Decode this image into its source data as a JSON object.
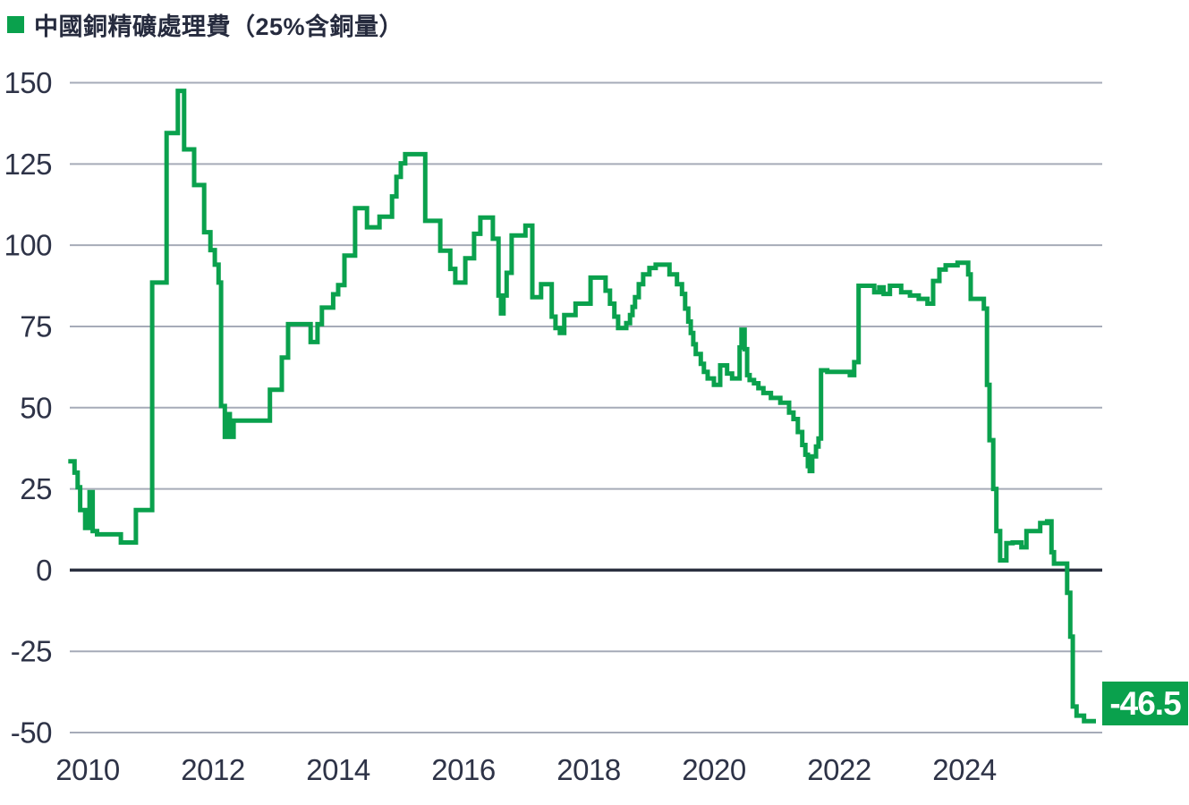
{
  "header": {
    "title": "中國銅精礦處理費（25%含銅量）"
  },
  "colors": {
    "series_green": "#0aa14d",
    "badge_bg": "#0aa14d",
    "badge_text": "#ffffff",
    "grid": "#a6abb8",
    "zero_line": "#2b3040",
    "label_text": "#2e3347",
    "background": "#ffffff"
  },
  "badge": {
    "label": "-46.5"
  },
  "chart_data": {
    "type": "line",
    "step": true,
    "title": "中國銅精礦處理費（25%含銅量）",
    "xlabel": "",
    "ylabel": "",
    "ylim": [
      -50,
      150
    ],
    "xlim": [
      2009.55,
      2026.3
    ],
    "grid": "horizontal",
    "legend_position": "top-left",
    "y_ticks": [
      150,
      125,
      100,
      75,
      50,
      25,
      0,
      -25,
      -50
    ],
    "x_ticks": [
      2010,
      2012,
      2014,
      2016,
      2018,
      2020,
      2022,
      2024
    ],
    "end_annotation": {
      "label": "-46.5",
      "value": -46.5
    },
    "series": [
      {
        "name": "中國銅精礦處理費（25%含銅量）",
        "color": "#0aa14d",
        "points": [
          [
            2009.69,
            33.5
          ],
          [
            2009.79,
            30
          ],
          [
            2009.84,
            25.5
          ],
          [
            2009.88,
            18.5
          ],
          [
            2009.96,
            13
          ],
          [
            2010.03,
            24
          ],
          [
            2010.08,
            12
          ],
          [
            2010.15,
            11
          ],
          [
            2010.53,
            8.5
          ],
          [
            2010.77,
            18.5
          ],
          [
            2011.03,
            88.5
          ],
          [
            2011.26,
            134.5
          ],
          [
            2011.44,
            147.5
          ],
          [
            2011.54,
            129.5
          ],
          [
            2011.7,
            118.5
          ],
          [
            2011.86,
            104
          ],
          [
            2011.96,
            98.5
          ],
          [
            2012.03,
            94
          ],
          [
            2012.09,
            88.5
          ],
          [
            2012.13,
            50.5
          ],
          [
            2012.19,
            41
          ],
          [
            2012.23,
            48
          ],
          [
            2012.27,
            41
          ],
          [
            2012.33,
            46
          ],
          [
            2012.91,
            55.5
          ],
          [
            2013.1,
            65.4
          ],
          [
            2013.2,
            75.7
          ],
          [
            2013.56,
            70.2
          ],
          [
            2013.67,
            75.7
          ],
          [
            2013.74,
            80.8
          ],
          [
            2013.92,
            84.9
          ],
          [
            2014.0,
            87.7
          ],
          [
            2014.1,
            96.8
          ],
          [
            2014.27,
            111.4
          ],
          [
            2014.46,
            105.5
          ],
          [
            2014.66,
            108.8
          ],
          [
            2014.86,
            115
          ],
          [
            2014.93,
            121
          ],
          [
            2015.0,
            125.2
          ],
          [
            2015.07,
            128
          ],
          [
            2015.39,
            107.5
          ],
          [
            2015.63,
            98.3
          ],
          [
            2015.79,
            92.7
          ],
          [
            2015.87,
            88.5
          ],
          [
            2016.03,
            96
          ],
          [
            2016.17,
            103.5
          ],
          [
            2016.27,
            108.5
          ],
          [
            2016.47,
            102
          ],
          [
            2016.56,
            84.5
          ],
          [
            2016.6,
            79
          ],
          [
            2016.64,
            84.5
          ],
          [
            2016.69,
            91.5
          ],
          [
            2016.77,
            103
          ],
          [
            2016.99,
            106
          ],
          [
            2017.1,
            84
          ],
          [
            2017.24,
            88
          ],
          [
            2017.41,
            78
          ],
          [
            2017.47,
            74.5
          ],
          [
            2017.54,
            73
          ],
          [
            2017.61,
            78.5
          ],
          [
            2017.79,
            82
          ],
          [
            2018.03,
            90
          ],
          [
            2018.27,
            86
          ],
          [
            2018.34,
            82
          ],
          [
            2018.41,
            78
          ],
          [
            2018.47,
            74.5
          ],
          [
            2018.6,
            76
          ],
          [
            2018.66,
            78.5
          ],
          [
            2018.7,
            81
          ],
          [
            2018.74,
            84
          ],
          [
            2018.8,
            88
          ],
          [
            2018.87,
            91
          ],
          [
            2018.97,
            93
          ],
          [
            2019.07,
            94
          ],
          [
            2019.29,
            91
          ],
          [
            2019.41,
            88
          ],
          [
            2019.49,
            85
          ],
          [
            2019.54,
            80.5
          ],
          [
            2019.59,
            76.5
          ],
          [
            2019.63,
            73
          ],
          [
            2019.67,
            69.5
          ],
          [
            2019.71,
            66.5
          ],
          [
            2019.79,
            63.5
          ],
          [
            2019.84,
            61
          ],
          [
            2019.9,
            59
          ],
          [
            2020.0,
            57
          ],
          [
            2020.1,
            63
          ],
          [
            2020.21,
            60.5
          ],
          [
            2020.29,
            59
          ],
          [
            2020.41,
            68.5
          ],
          [
            2020.44,
            74
          ],
          [
            2020.49,
            68
          ],
          [
            2020.53,
            60
          ],
          [
            2020.57,
            58.5
          ],
          [
            2020.64,
            57.5
          ],
          [
            2020.71,
            56
          ],
          [
            2020.79,
            54.5
          ],
          [
            2020.91,
            53
          ],
          [
            2021.06,
            51.5
          ],
          [
            2021.2,
            48.5
          ],
          [
            2021.27,
            46.5
          ],
          [
            2021.34,
            42.5
          ],
          [
            2021.41,
            38.5
          ],
          [
            2021.46,
            35.5
          ],
          [
            2021.5,
            32
          ],
          [
            2021.53,
            30.5
          ],
          [
            2021.57,
            35
          ],
          [
            2021.63,
            38
          ],
          [
            2021.67,
            40.5
          ],
          [
            2021.71,
            61.5
          ],
          [
            2021.81,
            61
          ],
          [
            2022.17,
            60
          ],
          [
            2022.24,
            64
          ],
          [
            2022.31,
            87.5
          ],
          [
            2022.56,
            85.5
          ],
          [
            2022.64,
            87
          ],
          [
            2022.71,
            85
          ],
          [
            2022.81,
            87.5
          ],
          [
            2022.99,
            85.5
          ],
          [
            2023.13,
            84.5
          ],
          [
            2023.27,
            83.5
          ],
          [
            2023.41,
            82
          ],
          [
            2023.5,
            89
          ],
          [
            2023.6,
            92.5
          ],
          [
            2023.7,
            93.8
          ],
          [
            2023.89,
            94.6
          ],
          [
            2024.06,
            91
          ],
          [
            2024.1,
            83.5
          ],
          [
            2024.31,
            80.5
          ],
          [
            2024.36,
            57
          ],
          [
            2024.4,
            40
          ],
          [
            2024.46,
            25
          ],
          [
            2024.51,
            12
          ],
          [
            2024.57,
            3
          ],
          [
            2024.67,
            8.3
          ],
          [
            2024.77,
            8.5
          ],
          [
            2024.91,
            7
          ],
          [
            2024.99,
            12
          ],
          [
            2025.21,
            14.5
          ],
          [
            2025.32,
            15
          ],
          [
            2025.39,
            5.5
          ],
          [
            2025.43,
            2
          ],
          [
            2025.64,
            -7
          ],
          [
            2025.69,
            -20.5
          ],
          [
            2025.73,
            -42
          ],
          [
            2025.79,
            -44.8
          ],
          [
            2025.91,
            -46.5
          ],
          [
            2026.1,
            -46.5
          ]
        ]
      }
    ]
  }
}
